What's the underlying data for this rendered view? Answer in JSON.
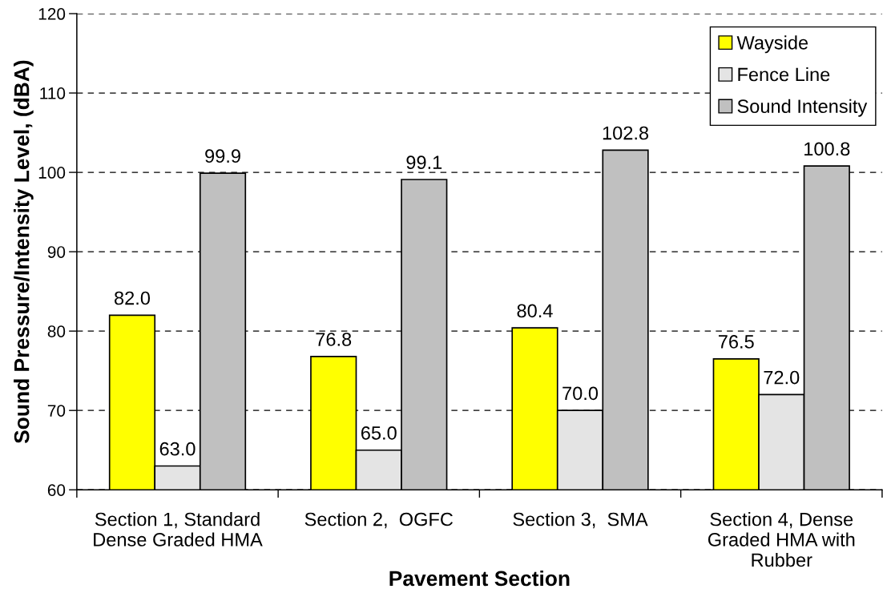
{
  "chart_data": {
    "type": "bar",
    "xlabel": "Pavement Section",
    "ylabel": "Sound Pressure/Intensity Level, (dBA)",
    "categories": [
      "Section 1, Standard\nDense Graded HMA",
      "Section 2,  OGFC",
      "Section 3,  SMA",
      "Section 4, Dense\nGraded HMA with\nRubber"
    ],
    "series": [
      {
        "name": "Wayside",
        "color": "#ffff00",
        "values": [
          82.0,
          76.8,
          80.4,
          76.5
        ],
        "value_labels": [
          "82.0",
          "76.8",
          "80.4",
          "76.5"
        ]
      },
      {
        "name": "Fence Line",
        "color": "#e4e4e4",
        "values": [
          63.0,
          65.0,
          70.0,
          72.0
        ],
        "value_labels": [
          "63.0",
          "65.0",
          "70.0",
          "72.0"
        ]
      },
      {
        "name": "Sound Intensity",
        "color": "#c0c0c0",
        "values": [
          99.9,
          99.1,
          102.8,
          100.8
        ],
        "value_labels": [
          "99.9",
          "99.1",
          "102.8",
          "100.8"
        ]
      }
    ],
    "ylim": [
      60,
      120
    ],
    "yticks": [
      60,
      70,
      80,
      90,
      100,
      110,
      120
    ],
    "grid": "y",
    "legend": "top right"
  }
}
